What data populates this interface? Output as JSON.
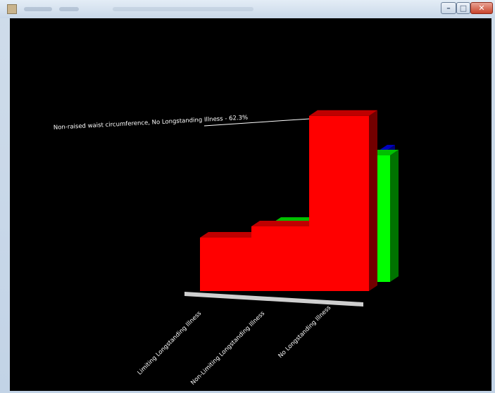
{
  "window": {
    "icons": [
      "app-icon",
      "minimize-icon",
      "maximize-icon",
      "close-icon"
    ],
    "controls": {
      "minimize": "–",
      "maximize": "□",
      "close": "✕"
    }
  },
  "chart_data": {
    "type": "bar",
    "categories": [
      "Limiting Longstanding Illness",
      "Non-Limiting Longstanding Illness",
      "No Longstanding Illness"
    ],
    "series": [
      {
        "color": "#ff0000",
        "values": [
          19,
          23,
          62.3
        ]
      },
      {
        "color": "#00ff00",
        "values": [
          11,
          21,
          45
        ]
      },
      {
        "color": "#0000ff",
        "values": [
          null,
          null,
          45
        ]
      }
    ],
    "annotation": "Non-raised waist circumference, No Longstanding Illness - 62.3%",
    "ylim": [
      0,
      70
    ]
  }
}
